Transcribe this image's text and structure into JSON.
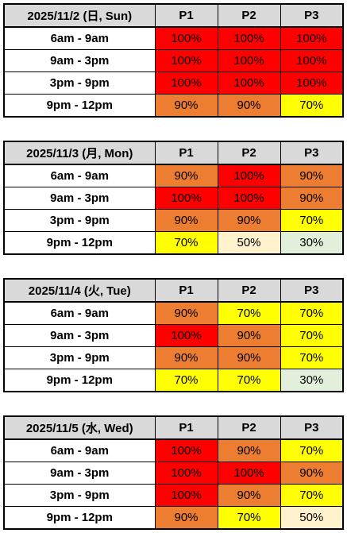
{
  "colors": {
    "100%": "#ff0000",
    "90%": "#ed7d31",
    "70%": "#ffff00",
    "50%": "#fff2cc",
    "30%": "#e2efda",
    "header_bg": "#d9d9d9"
  },
  "tables": [
    {
      "date": "2025/11/2 (日, Sun)",
      "columns": [
        "P1",
        "P2",
        "P3"
      ],
      "rows": [
        {
          "time": "6am - 9am",
          "values": [
            "100%",
            "100%",
            "100%"
          ]
        },
        {
          "time": "9am - 3pm",
          "values": [
            "100%",
            "100%",
            "100%"
          ]
        },
        {
          "time": "3pm - 9pm",
          "values": [
            "100%",
            "100%",
            "100%"
          ]
        },
        {
          "time": "9pm - 12pm",
          "values": [
            "90%",
            "90%",
            "70%"
          ]
        }
      ]
    },
    {
      "date": "2025/11/3 (月, Mon)",
      "columns": [
        "P1",
        "P2",
        "P3"
      ],
      "rows": [
        {
          "time": "6am - 9am",
          "values": [
            "90%",
            "100%",
            "90%"
          ]
        },
        {
          "time": "9am - 3pm",
          "values": [
            "100%",
            "100%",
            "90%"
          ]
        },
        {
          "time": "3pm - 9pm",
          "values": [
            "90%",
            "90%",
            "70%"
          ]
        },
        {
          "time": "9pm - 12pm",
          "values": [
            "70%",
            "50%",
            "30%"
          ]
        }
      ]
    },
    {
      "date": "2025/11/4 (火, Tue)",
      "columns": [
        "P1",
        "P2",
        "P3"
      ],
      "rows": [
        {
          "time": "6am - 9am",
          "values": [
            "90%",
            "70%",
            "70%"
          ]
        },
        {
          "time": "9am - 3pm",
          "values": [
            "100%",
            "90%",
            "70%"
          ]
        },
        {
          "time": "3pm - 9pm",
          "values": [
            "90%",
            "90%",
            "70%"
          ]
        },
        {
          "time": "9pm - 12pm",
          "values": [
            "70%",
            "70%",
            "30%"
          ]
        }
      ]
    },
    {
      "date": "2025/11/5 (水, Wed)",
      "columns": [
        "P1",
        "P2",
        "P3"
      ],
      "rows": [
        {
          "time": "6am - 9am",
          "values": [
            "100%",
            "90%",
            "70%"
          ]
        },
        {
          "time": "9am - 3pm",
          "values": [
            "100%",
            "100%",
            "90%"
          ]
        },
        {
          "time": "3pm - 9pm",
          "values": [
            "100%",
            "90%",
            "70%"
          ]
        },
        {
          "time": "9pm - 12pm",
          "values": [
            "90%",
            "70%",
            "50%"
          ]
        }
      ]
    }
  ]
}
